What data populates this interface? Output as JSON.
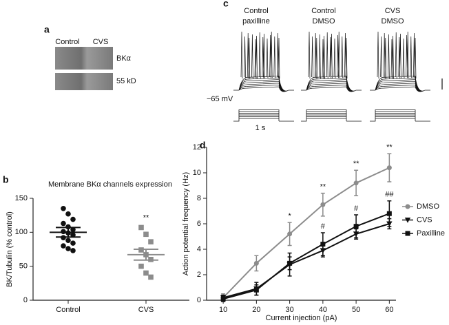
{
  "panel_a": {
    "label": "a",
    "lanes": [
      "Control",
      "CVS"
    ],
    "bands": [
      "BKα",
      "55 kD"
    ]
  },
  "panel_c": {
    "label": "c",
    "conditions": [
      [
        "Control",
        "paxilline"
      ],
      [
        "Control",
        "DMSO"
      ],
      [
        "CVS",
        "DMSO"
      ]
    ],
    "holding": "−65 mV",
    "time_scale": "1 s"
  },
  "chart_data": [
    {
      "type": "dot",
      "label": "b",
      "title": "Membrane BKα channels expression",
      "ylabel": "BK/Tubulin (% control)",
      "ylim": [
        0,
        150
      ],
      "yticks": [
        0,
        50,
        100,
        150
      ],
      "groups": [
        {
          "name": "Control",
          "color": "#111111",
          "marker": "circle",
          "values": [
            135,
            127,
            119,
            113,
            108,
            104,
            101,
            99,
            96,
            92,
            88,
            84,
            80,
            76,
            73
          ],
          "mean": 100,
          "sem": 7
        },
        {
          "name": "CVS",
          "color": "#8c8c8c",
          "marker": "square",
          "values": [
            107,
            97,
            86,
            74,
            67,
            60,
            50,
            40,
            34
          ],
          "mean": 67,
          "sem": 8,
          "annotation": "**"
        }
      ]
    },
    {
      "type": "line",
      "label": "d",
      "xlabel": "Current injection (pA)",
      "ylabel": "Action potential frequency (Hz)",
      "x": [
        10,
        20,
        30,
        40,
        50,
        60
      ],
      "xlim": [
        5,
        62
      ],
      "xticks": [
        10,
        20,
        30,
        40,
        50,
        60
      ],
      "ylim": [
        0,
        12
      ],
      "yticks": [
        0,
        2,
        4,
        6,
        8,
        10,
        12
      ],
      "legend": "right",
      "series": [
        {
          "name": "DMSO",
          "color": "#8c8c8c",
          "marker": "circle",
          "values": [
            0.2,
            2.9,
            5.2,
            7.5,
            9.2,
            10.4
          ],
          "errors": [
            0.3,
            0.6,
            0.9,
            0.9,
            1.0,
            1.1
          ]
        },
        {
          "name": "CVS",
          "color": "#111111",
          "marker": "triangle",
          "values": [
            0.2,
            0.9,
            2.8,
            3.9,
            5.2,
            6.0
          ],
          "errors": [
            0.2,
            0.5,
            0.9,
            0.5,
            0.4,
            0.4
          ]
        },
        {
          "name": "Paxilline",
          "color": "#111111",
          "marker": "square",
          "values": [
            0.1,
            0.8,
            2.9,
            4.4,
            5.8,
            6.8
          ],
          "errors": [
            0.2,
            0.4,
            0.5,
            0.9,
            0.9,
            1.0
          ]
        }
      ],
      "annotations": [
        {
          "x": 30,
          "series": "DMSO",
          "text": "*"
        },
        {
          "x": 40,
          "series": "DMSO",
          "text": "**"
        },
        {
          "x": 50,
          "series": "DMSO",
          "text": "**"
        },
        {
          "x": 60,
          "series": "DMSO",
          "text": "**"
        },
        {
          "x": 40,
          "series": "Paxilline",
          "text": "#"
        },
        {
          "x": 50,
          "series": "Paxilline",
          "text": "#"
        },
        {
          "x": 60,
          "series": "Paxilline",
          "text": "##"
        }
      ]
    }
  ]
}
